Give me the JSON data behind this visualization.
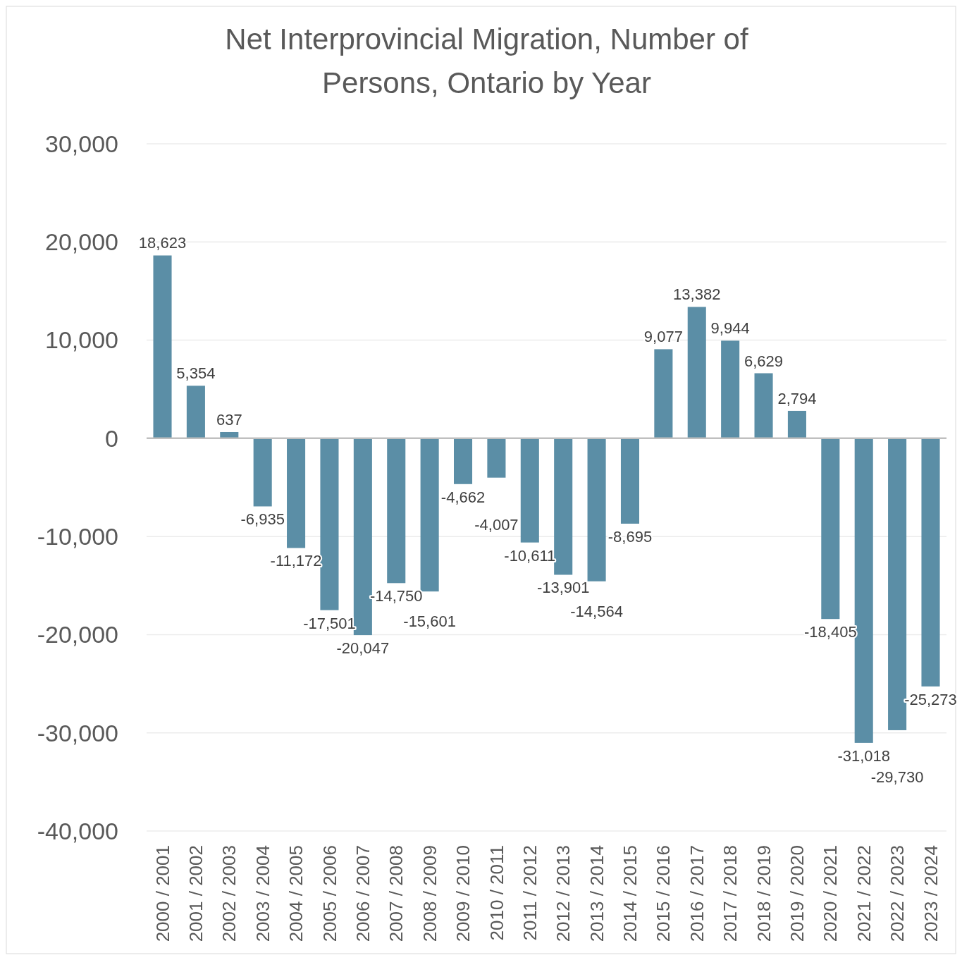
{
  "chart_data": {
    "type": "bar",
    "title": "Net Interprovincial Migration, Number of Persons, Ontario by Year",
    "categories": [
      "2000 / 2001",
      "2001 / 2002",
      "2002 / 2003",
      "2003 / 2004",
      "2004 / 2005",
      "2005 / 2006",
      "2006 / 2007",
      "2007 / 2008",
      "2008 / 2009",
      "2009 / 2010",
      "2010 / 2011",
      "2011 / 2012",
      "2012 / 2013",
      "2013 / 2014",
      "2014 / 2015",
      "2015 / 2016",
      "2016 / 2017",
      "2017 / 2018",
      "2018 / 2019",
      "2019 / 2020",
      "2020 / 2021",
      "2021 / 2022",
      "2022 / 2023",
      "2023 / 2024"
    ],
    "values": [
      18623,
      5354,
      637,
      -6935,
      -11172,
      -17501,
      -20047,
      -14750,
      -15601,
      -4662,
      -4007,
      -10611,
      -13901,
      -14564,
      -8695,
      9077,
      13382,
      9944,
      6629,
      2794,
      -18405,
      -31018,
      -29730,
      -25273
    ],
    "color": "#5b8ea6",
    "ylim": [
      -40000,
      30000
    ],
    "yticks": [
      {
        "value": -40000,
        "label": "-40,000"
      },
      {
        "value": -30000,
        "label": "-30,000"
      },
      {
        "value": -20000,
        "label": "-20,000"
      },
      {
        "value": -10000,
        "label": "-10,000"
      },
      {
        "value": 0,
        "label": "0"
      },
      {
        "value": 10000,
        "label": "10,000"
      },
      {
        "value": 20000,
        "label": "20,000"
      },
      {
        "value": 30000,
        "label": "30,000"
      }
    ],
    "value_labels": [
      "18,623",
      "5,354",
      "637",
      "-6,935",
      "-11,172",
      "-17,501",
      "-20,047",
      "-14,750",
      "-15,601",
      "-4,662",
      "-4,007",
      "-10,611",
      "-13,901",
      "-14,564",
      "-8,695",
      "9,077",
      "13,382",
      "9,944",
      "6,629",
      "2,794",
      "-18,405",
      "-31,018",
      "-29,730",
      "-25,273"
    ],
    "grid": "y"
  }
}
